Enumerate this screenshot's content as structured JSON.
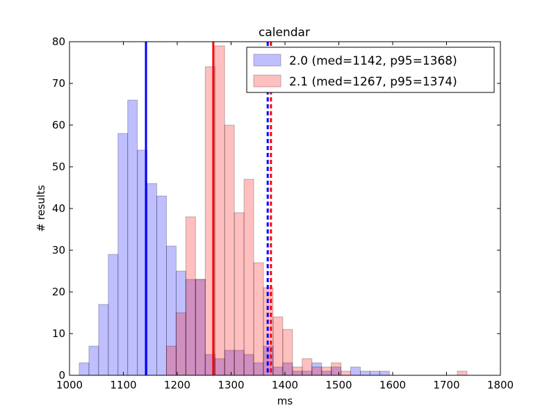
{
  "chart_data": {
    "type": "histogram",
    "title": "calendar",
    "xlabel": "ms",
    "ylabel": "# results",
    "xlim": [
      1000,
      1800
    ],
    "ylim": [
      0,
      80
    ],
    "xticks": [
      1000,
      1100,
      1200,
      1300,
      1400,
      1500,
      1600,
      1700,
      1800
    ],
    "yticks": [
      0,
      10,
      20,
      30,
      40,
      50,
      60,
      70,
      80
    ],
    "legend_position": "top-right",
    "series": [
      {
        "name": "2.0 (med=1142, p95=1368)",
        "color": "#0000ff",
        "bins": [
          {
            "x0": 1018,
            "x1": 1036,
            "count": 3
          },
          {
            "x0": 1036,
            "x1": 1054,
            "count": 7
          },
          {
            "x0": 1054,
            "x1": 1072,
            "count": 17
          },
          {
            "x0": 1072,
            "x1": 1090,
            "count": 29
          },
          {
            "x0": 1090,
            "x1": 1108,
            "count": 58
          },
          {
            "x0": 1108,
            "x1": 1126,
            "count": 66
          },
          {
            "x0": 1126,
            "x1": 1144,
            "count": 54
          },
          {
            "x0": 1144,
            "x1": 1162,
            "count": 46
          },
          {
            "x0": 1162,
            "x1": 1180,
            "count": 43
          },
          {
            "x0": 1180,
            "x1": 1198,
            "count": 31
          },
          {
            "x0": 1198,
            "x1": 1216,
            "count": 25
          },
          {
            "x0": 1216,
            "x1": 1234,
            "count": 23
          },
          {
            "x0": 1234,
            "x1": 1252,
            "count": 23
          },
          {
            "x0": 1252,
            "x1": 1270,
            "count": 5
          },
          {
            "x0": 1270,
            "x1": 1288,
            "count": 4
          },
          {
            "x0": 1288,
            "x1": 1306,
            "count": 6
          },
          {
            "x0": 1306,
            "x1": 1324,
            "count": 6
          },
          {
            "x0": 1324,
            "x1": 1342,
            "count": 5
          },
          {
            "x0": 1342,
            "x1": 1360,
            "count": 3
          },
          {
            "x0": 1360,
            "x1": 1378,
            "count": 7
          },
          {
            "x0": 1378,
            "x1": 1396,
            "count": 2
          },
          {
            "x0": 1396,
            "x1": 1414,
            "count": 3
          },
          {
            "x0": 1414,
            "x1": 1432,
            "count": 1
          },
          {
            "x0": 1432,
            "x1": 1450,
            "count": 1
          },
          {
            "x0": 1450,
            "x1": 1468,
            "count": 3
          },
          {
            "x0": 1468,
            "x1": 1486,
            "count": 1
          },
          {
            "x0": 1486,
            "x1": 1504,
            "count": 2
          },
          {
            "x0": 1522,
            "x1": 1540,
            "count": 2
          },
          {
            "x0": 1540,
            "x1": 1558,
            "count": 1
          },
          {
            "x0": 1558,
            "x1": 1576,
            "count": 1
          },
          {
            "x0": 1576,
            "x1": 1594,
            "count": 1
          }
        ],
        "median": 1142,
        "p95": 1368
      },
      {
        "name": "2.1 (med=1267, p95=1374)",
        "color": "#ff0000",
        "bins": [
          {
            "x0": 1180,
            "x1": 1198,
            "count": 7
          },
          {
            "x0": 1198,
            "x1": 1216,
            "count": 15
          },
          {
            "x0": 1216,
            "x1": 1234,
            "count": 38
          },
          {
            "x0": 1234,
            "x1": 1252,
            "count": 23
          },
          {
            "x0": 1252,
            "x1": 1270,
            "count": 74
          },
          {
            "x0": 1270,
            "x1": 1288,
            "count": 79
          },
          {
            "x0": 1288,
            "x1": 1306,
            "count": 60
          },
          {
            "x0": 1306,
            "x1": 1324,
            "count": 39
          },
          {
            "x0": 1324,
            "x1": 1342,
            "count": 47
          },
          {
            "x0": 1342,
            "x1": 1360,
            "count": 27
          },
          {
            "x0": 1360,
            "x1": 1378,
            "count": 21
          },
          {
            "x0": 1378,
            "x1": 1396,
            "count": 14
          },
          {
            "x0": 1396,
            "x1": 1414,
            "count": 11
          },
          {
            "x0": 1414,
            "x1": 1432,
            "count": 2
          },
          {
            "x0": 1432,
            "x1": 1450,
            "count": 4
          },
          {
            "x0": 1450,
            "x1": 1468,
            "count": 2
          },
          {
            "x0": 1468,
            "x1": 1486,
            "count": 2
          },
          {
            "x0": 1486,
            "x1": 1504,
            "count": 3
          },
          {
            "x0": 1504,
            "x1": 1522,
            "count": 1
          },
          {
            "x0": 1720,
            "x1": 1738,
            "count": 1
          }
        ],
        "median": 1267,
        "p95": 1374
      }
    ]
  }
}
